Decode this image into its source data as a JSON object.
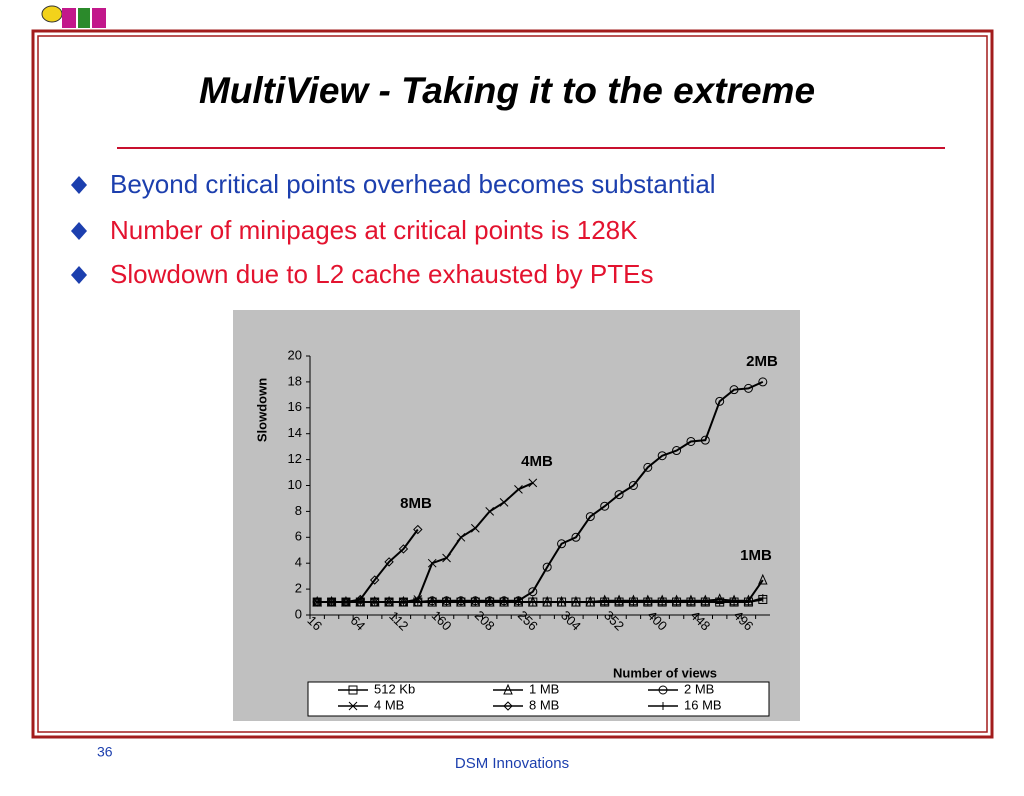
{
  "title": "MultiView - Taking it to the extreme",
  "bullets": [
    "Beyond critical points overhead becomes substantial",
    "Number of minipages at critical points is 128K",
    "Slowdown due to L2 cache exhausted by PTEs"
  ],
  "page_number": "36",
  "footer": "DSM Innovations",
  "chart_data": {
    "type": "line",
    "x_label": "Number of views",
    "y_label": "Slowdown",
    "categories": [
      "16",
      null,
      null,
      "64",
      null,
      null,
      "112",
      null,
      null,
      "160",
      null,
      null,
      "208",
      null,
      null,
      "256",
      null,
      null,
      "304",
      null,
      null,
      "352",
      null,
      null,
      "400",
      null,
      null,
      "448",
      null,
      null,
      "496",
      null
    ],
    "ylim": [
      0,
      20
    ],
    "yticks": [
      0,
      2,
      4,
      6,
      8,
      10,
      12,
      14,
      16,
      18,
      20
    ],
    "annotations": [
      "2MB",
      "4MB",
      "8MB",
      "1MB"
    ],
    "series": [
      {
        "name": "512 Kb",
        "color": "#000000",
        "marker": "square",
        "values": [
          1,
          1,
          1,
          1,
          1,
          1,
          1,
          1,
          1,
          1,
          1,
          1,
          1,
          1,
          1,
          1,
          1,
          1,
          1,
          1,
          1,
          1,
          1,
          1,
          1,
          1,
          1,
          1,
          1,
          1,
          1,
          1.2
        ]
      },
      {
        "name": "1 MB",
        "color": "#000000",
        "marker": "triangle",
        "values": [
          1,
          1,
          1,
          1,
          1,
          1,
          1,
          1,
          1,
          1,
          1,
          1,
          1,
          1,
          1,
          1,
          1,
          1,
          1,
          1,
          1.1,
          1.1,
          1.1,
          1.1,
          1.1,
          1.1,
          1.1,
          1.1,
          1.2,
          1.1,
          1.1,
          2.7
        ]
      },
      {
        "name": "2 MB",
        "color": "#000000",
        "marker": "circle",
        "values": [
          1,
          1,
          1,
          1,
          1,
          1,
          1,
          1,
          1.1,
          1.1,
          1.1,
          1.1,
          1.1,
          1.1,
          1.1,
          1.8,
          3.7,
          5.5,
          6.0,
          7.6,
          8.4,
          9.3,
          10.0,
          11.4,
          12.3,
          12.7,
          13.4,
          13.5,
          16.5,
          17.4,
          17.5,
          18.0
        ]
      },
      {
        "name": "4 MB",
        "color": "#000000",
        "marker": "x",
        "values": [
          1,
          1,
          1,
          1,
          1,
          1,
          1,
          1.2,
          4.0,
          4.4,
          6.0,
          6.7,
          8.0,
          8.7,
          9.7,
          10.2,
          null,
          null,
          null,
          null,
          null,
          null,
          null,
          null,
          null,
          null,
          null,
          null,
          null,
          null,
          null,
          null
        ]
      },
      {
        "name": "8 MB",
        "color": "#000000",
        "marker": "diamond",
        "values": [
          1,
          1,
          1,
          1.2,
          2.7,
          4.1,
          5.1,
          6.6,
          null,
          null,
          null,
          null,
          null,
          null,
          null,
          null,
          null,
          null,
          null,
          null,
          null,
          null,
          null,
          null,
          null,
          null,
          null,
          null,
          null,
          null,
          null,
          null
        ]
      },
      {
        "name": "16 MB",
        "color": "#000000",
        "marker": "plus",
        "values": [
          1,
          1,
          1,
          1,
          1,
          1,
          1,
          1,
          1,
          1,
          1,
          1,
          1,
          1,
          1,
          1,
          1,
          1,
          1,
          1,
          1,
          1,
          1,
          1,
          1,
          1,
          1,
          1,
          1,
          1,
          1,
          1.3
        ]
      }
    ]
  }
}
